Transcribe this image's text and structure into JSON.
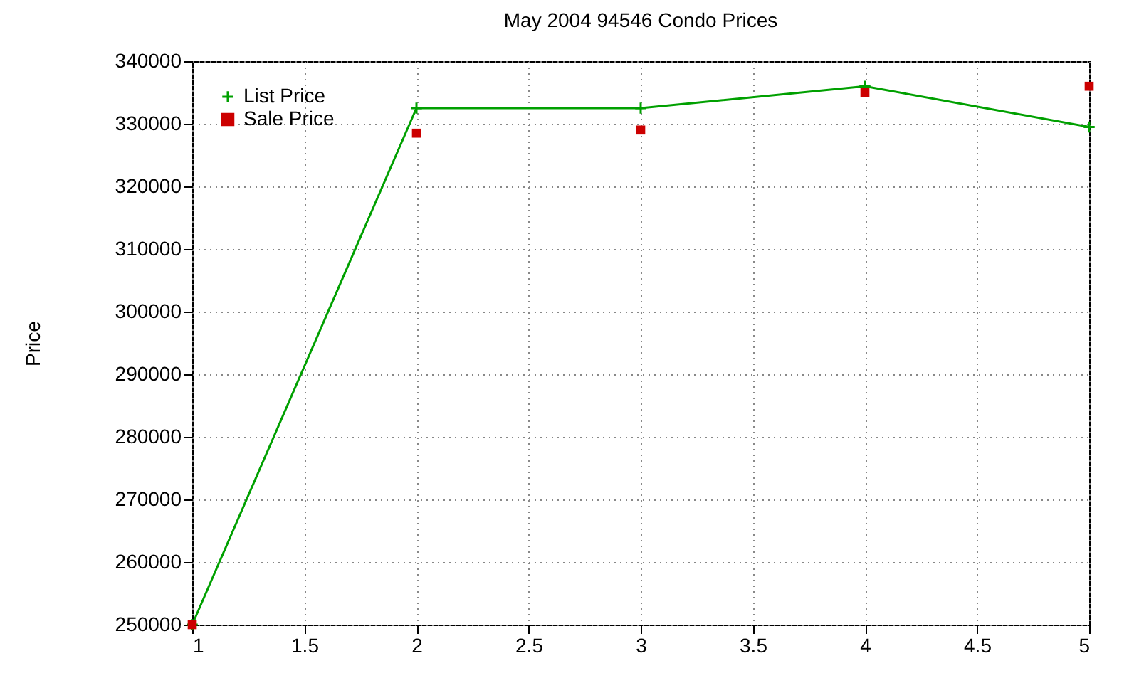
{
  "chart_data": {
    "type": "line",
    "title": "May 2004 94546 Condo Prices",
    "ylabel": "Price",
    "x": [
      1,
      2,
      3,
      4,
      5
    ],
    "series": [
      {
        "name": "List Price",
        "type": "line",
        "marker": "cross",
        "color": "#00a000",
        "values": [
          250000,
          332500,
          332500,
          336000,
          329500
        ]
      },
      {
        "name": "Sale Price",
        "type": "scatter",
        "marker": "square",
        "color": "#cc0000",
        "values": [
          250000,
          328500,
          329000,
          335000,
          336000
        ]
      }
    ],
    "xlim": [
      1,
      5
    ],
    "xticks": [
      1,
      1.5,
      2,
      2.5,
      3,
      3.5,
      4,
      4.5,
      5
    ],
    "ylim": [
      250000,
      340000
    ],
    "yticks": [
      250000,
      260000,
      270000,
      280000,
      290000,
      300000,
      310000,
      320000,
      330000,
      340000
    ],
    "grid": true,
    "legend": "top left"
  }
}
